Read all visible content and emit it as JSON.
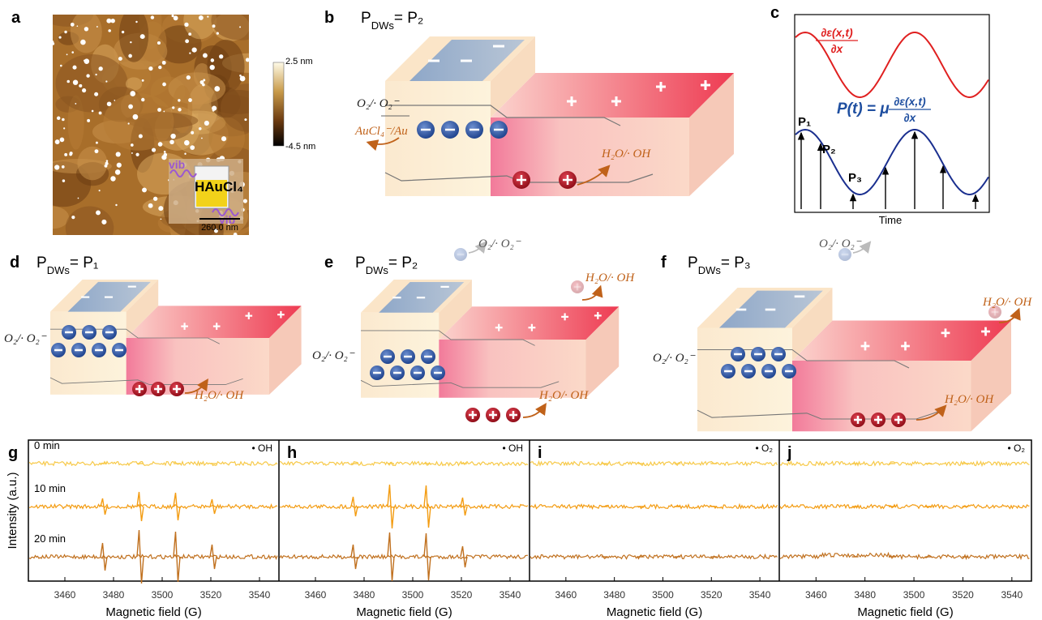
{
  "a": {
    "label": "a",
    "colorbar_max": "2.5 nm",
    "colorbar_min": "-4.5 nm",
    "scale_bar": "260.0 nm",
    "inset_top": "vib",
    "inset_bottom": "vib",
    "inset_label": "HAuCl₄"
  },
  "b": {
    "label": "b",
    "title": [
      "P",
      "DWs",
      "= P₂"
    ],
    "left_species": "O₂/· O₂⁻",
    "left_product": "AuCl₄⁻/Au",
    "right_species": "H₂O/· OH"
  },
  "c": {
    "label": "c",
    "top_numerator": "∂ε(x,t)",
    "top_denominator": "∂x",
    "bottom_lhs": "P(t) = μ",
    "bottom_numerator": "∂ε(x,t)",
    "bottom_denominator": "∂x",
    "points": [
      "P₁",
      "P₂",
      "P₃"
    ],
    "x_label": "Time"
  },
  "d": {
    "label": "d",
    "title": [
      "P",
      "DWs",
      "= P₁"
    ],
    "left_species": "O₂/· O₂⁻",
    "right_species": "H₂O/· OH"
  },
  "e": {
    "label": "e",
    "title": [
      "P",
      "DWs",
      "= P₂"
    ],
    "left_species": "O₂/· O₂⁻",
    "top_species": "O₂/· O₂⁻",
    "right_top_species": "H₂O/· OH",
    "right_species": "H₂O/· OH"
  },
  "f": {
    "label": "f",
    "title": [
      "P",
      "DWs",
      "= P₃"
    ],
    "left_species": "O₂/· O₂⁻",
    "top_species": "O₂/· O₂⁻",
    "right_top_species": "H₂O/· OH",
    "right_species": "H₂O/· OH"
  },
  "chart_data": [
    {
      "type": "line",
      "label": "g",
      "radical": "• OH",
      "y_label": "Intensity (a.u.)",
      "x_label": "Magnetic field (G)",
      "xlim": [
        3445,
        3548
      ],
      "xticks": [
        3460,
        3480,
        3500,
        3520,
        3540
      ],
      "x": [
        3476,
        3491,
        3506,
        3521
      ],
      "series": [
        {
          "name": "0 min",
          "color": "#f7c948",
          "values": [
            0,
            0,
            0,
            0
          ]
        },
        {
          "name": "10 min",
          "color": "#f39c12",
          "values": [
            10,
            18,
            17,
            9
          ]
        },
        {
          "name": "20 min",
          "color": "#c0701e",
          "values": [
            17,
            33,
            31,
            15
          ]
        }
      ]
    },
    {
      "type": "line",
      "label": "h",
      "radical": "• OH",
      "x_label": "Magnetic field (G)",
      "xlim": [
        3445,
        3548
      ],
      "xticks": [
        3460,
        3480,
        3500,
        3520,
        3540
      ],
      "x": [
        3476,
        3491,
        3506,
        3521
      ],
      "series": [
        {
          "color": "#f7c948",
          "values": [
            0,
            0,
            0,
            0
          ]
        },
        {
          "color": "#f39c12",
          "values": [
            12,
            27,
            26,
            11
          ]
        },
        {
          "color": "#c0701e",
          "values": [
            15,
            30,
            29,
            13
          ]
        }
      ]
    },
    {
      "type": "line",
      "label": "i",
      "radical": "• O₂",
      "x_label": "Magnetic field (G)",
      "xlim": [
        3445,
        3548
      ],
      "xticks": [
        3460,
        3480,
        3500,
        3520,
        3540
      ],
      "x": [
        3476,
        3491,
        3506,
        3521
      ],
      "series": [
        {
          "color": "#f7c948",
          "values": [
            0,
            0,
            0,
            0
          ]
        },
        {
          "color": "#f39c12",
          "values": [
            0,
            0,
            0,
            0
          ]
        },
        {
          "color": "#c0701e",
          "values": [
            0,
            0,
            0,
            0
          ]
        }
      ]
    },
    {
      "type": "line",
      "label": "j",
      "radical": "• O₂",
      "x_label": "Magnetic field (G)",
      "xlim": [
        3445,
        3548
      ],
      "xticks": [
        3460,
        3480,
        3500,
        3520,
        3540
      ],
      "x": [
        3476,
        3491,
        3506,
        3521
      ],
      "series": [
        {
          "color": "#f7c948",
          "values": [
            0,
            0,
            0,
            0
          ]
        },
        {
          "color": "#f39c12",
          "values": [
            0,
            0,
            0,
            0
          ]
        },
        {
          "color": "#c0701e",
          "values": [
            0,
            0,
            0,
            0
          ]
        }
      ]
    }
  ]
}
